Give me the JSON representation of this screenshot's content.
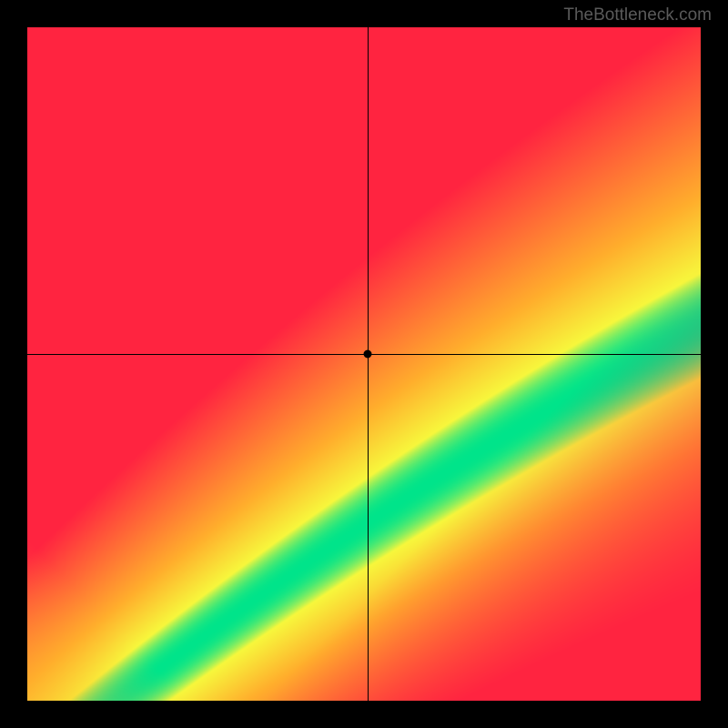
{
  "watermark": {
    "text": "TheBottleneck.com",
    "color": "#5a5a5a",
    "fontsize": 19
  },
  "chart": {
    "type": "heatmap",
    "background_color": "#000000",
    "plot_margin": 30,
    "canvas_size": 740,
    "xlim": [
      0,
      100
    ],
    "ylim": [
      0,
      100
    ],
    "crosshair": {
      "x_percent": 50.5,
      "y_percent": 48.5,
      "color": "#000000",
      "line_width": 1
    },
    "marker": {
      "x_percent": 50.5,
      "y_percent": 48.5,
      "radius": 4.5,
      "color": "#000000"
    },
    "gradient_field": {
      "description": "Heatmap where ideal diagonal band (green) runs lower-left to upper-right; deviation transitions yellow→orange→red. Band is curved (slightly convex) and widens toward upper-right.",
      "colors": {
        "ideal": "#00e48a",
        "near": "#f7f73c",
        "mid": "#ffae2c",
        "far": "#ff2440"
      },
      "thresholds": {
        "green_width": 0.055,
        "yellow_width": 0.13,
        "orange_width": 0.3
      },
      "band_curve": {
        "base_offset": -0.07,
        "curve_strength": 0.14,
        "widen_factor": 0.55
      }
    }
  }
}
